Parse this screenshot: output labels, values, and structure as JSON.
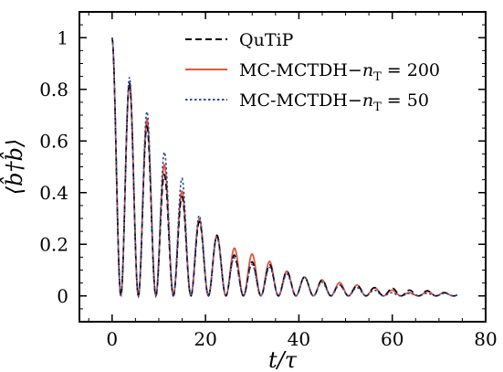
{
  "chart_data": {
    "type": "line",
    "title": "",
    "xlabel": "t/τ",
    "ylabel": "⟨b̂†b̂⟩",
    "xlim": [
      -7,
      80
    ],
    "ylim": [
      -0.1,
      1.1
    ],
    "xticks": [
      0,
      20,
      40,
      60,
      80
    ],
    "yticks": [
      0,
      0.2,
      0.4,
      0.6,
      0.8,
      1
    ],
    "ytick_labels": [
      "0",
      "0.2",
      "0.4",
      "0.6",
      "0.8",
      "1"
    ],
    "xtick_labels": [
      "0",
      "20",
      "40",
      "60",
      "80"
    ],
    "grid": false,
    "legend_position": "top-right",
    "oscillation_period": 3.75,
    "series": [
      {
        "name": "QuTiP",
        "name_parts": [
          "QuTiP"
        ],
        "color": "#000000",
        "style": "dashed",
        "x": [
          0,
          3.9,
          7.6,
          11.4,
          15.2,
          19.0,
          22.8,
          26.6,
          30.4,
          34.2,
          38.0,
          41.8,
          45.6,
          49.4,
          53.2,
          57.0,
          60.8,
          64.6,
          68.4,
          72.2
        ],
        "y": [
          1.0,
          0.82,
          0.65,
          0.46,
          0.38,
          0.28,
          0.23,
          0.15,
          0.13,
          0.12,
          0.09,
          0.07,
          0.06,
          0.04,
          0.04,
          0.03,
          0.03,
          0.02,
          0.02,
          0.01
        ]
      },
      {
        "name": "MC-MCTDH−nT = 200",
        "name_parts": [
          "MC-MCTDH−",
          "n",
          "T",
          " = 200"
        ],
        "color": "#e8543a",
        "style": "solid",
        "x": [
          0,
          3.9,
          7.6,
          11.4,
          15.2,
          19.0,
          22.8,
          26.6,
          30.4,
          34.2,
          38.0,
          41.8,
          45.6,
          49.4,
          53.2,
          57.0,
          60.8,
          64.6,
          68.4,
          72.2
        ],
        "y": [
          1.0,
          0.81,
          0.68,
          0.5,
          0.4,
          0.29,
          0.23,
          0.18,
          0.16,
          0.13,
          0.09,
          0.07,
          0.06,
          0.05,
          0.04,
          0.03,
          0.02,
          0.01,
          0.02,
          0.01
        ]
      },
      {
        "name": "MC-MCTDH−nT = 50",
        "name_parts": [
          "MC-MCTDH−",
          "n",
          "T",
          " = 50"
        ],
        "color": "#2b4f9e",
        "style": "dotted",
        "x": [
          0,
          3.9,
          7.6,
          11.4,
          15.2,
          19.0,
          22.8,
          26.6,
          30.4,
          34.2,
          38.0,
          41.8,
          45.6,
          49.4,
          53.2,
          57.0,
          60.8,
          64.6,
          68.4,
          72.2
        ],
        "y": [
          1.0,
          0.84,
          0.71,
          0.55,
          0.45,
          0.3,
          0.22,
          0.14,
          0.12,
          0.11,
          0.08,
          0.07,
          0.05,
          0.04,
          0.03,
          0.02,
          0.01,
          0.01,
          0.01,
          0.01
        ]
      }
    ]
  }
}
